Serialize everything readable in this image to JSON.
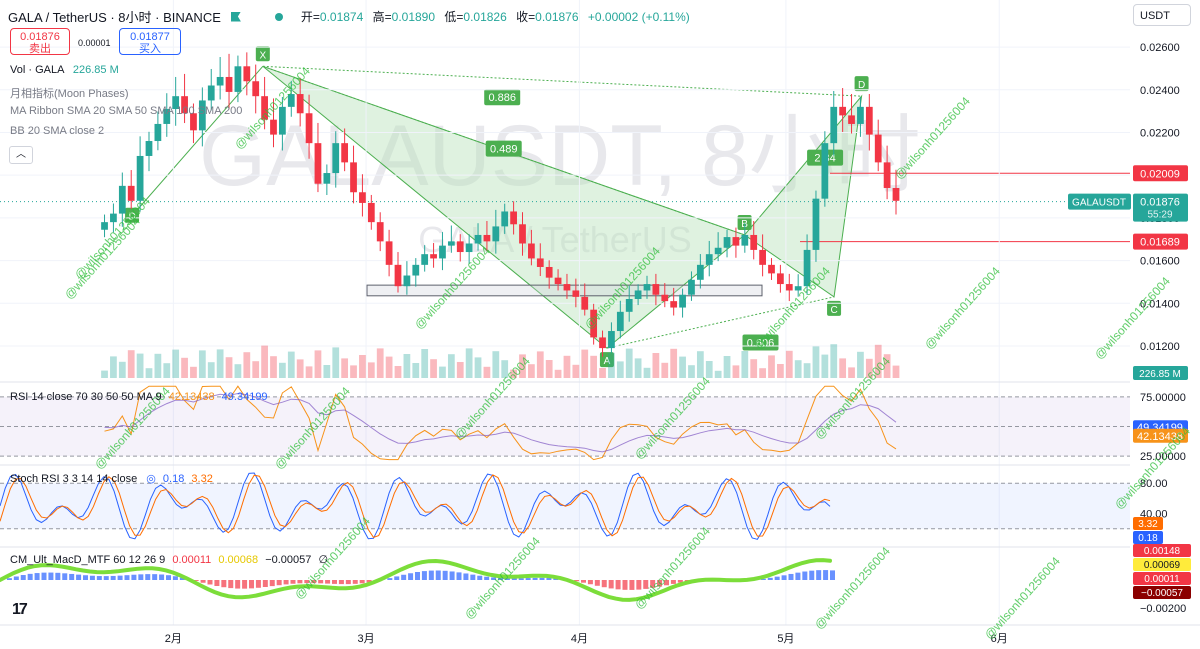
{
  "header": {
    "symbol": "GALA / TetherUS · 8小时 · BINANCE",
    "open_label": "开=",
    "open": "0.01874",
    "high_label": "高=",
    "high": "0.01890",
    "low_label": "低=",
    "low": "0.01826",
    "close_label": "收=",
    "close": "0.01876",
    "change": "+0.00002 (+0.11%)"
  },
  "trade": {
    "sell_price": "0.01876",
    "sell_label": "卖出",
    "spread": "0.00001",
    "buy_price": "0.01877",
    "buy_label": "买入"
  },
  "currency_select": "USDT",
  "indicators": {
    "vol_label": "Vol · GALA",
    "vol_value": "226.85 M",
    "moon": "月相指标(Moon Phases)",
    "ma_ribbon": "MA Ribbon SMA 20 SMA 50 SMA 100 SMA 200",
    "bb": "BB 20 SMA close 2",
    "rsi_label": "RSI 14 close 70 30 50 50 MA 9",
    "rsi_value": "42.13438",
    "rsi_ma_value": "49.34199",
    "stoch_label": "Stoch RSI 3 3 14 14 close",
    "stoch_k": "0.18",
    "stoch_d": "3.32",
    "macd_label": "CM_Ult_MacD_MTF 60 12 26 9",
    "macd_v1": "0.00011",
    "macd_v2": "0.00068",
    "macd_v3": "−0.00057",
    "macd_v4": "∅"
  },
  "watermarks": {
    "big": "GALAUSDT, 8小时",
    "small": "GALA / TetherUS",
    "handle": "@wilsonh01256004"
  },
  "colors": {
    "up": "#26a69a",
    "down": "#f23645",
    "pattern_fill": "#b9e3bb",
    "pattern_line": "#4caf50",
    "rsi_line": "#f7931a",
    "rsi_ma": "#7e57c2",
    "stoch_k": "#2962ff",
    "stoch_d": "#ff6d00",
    "hline": "#f23645"
  },
  "chart_data": {
    "type": "candlestick",
    "title": "GALA / TetherUS · 8小时 · BINANCE",
    "x_axis_ticks": [
      "2月",
      "3月",
      "4月",
      "5月",
      "6月"
    ],
    "price_axis_ticks": [
      "0.02600",
      "0.02400",
      "0.02200",
      "0.02000",
      "0.01800",
      "0.01600",
      "0.01400",
      "0.01200"
    ],
    "price_range": [
      0.0105,
      0.0268
    ],
    "current_price_label": {
      "text": "GALAUSDT",
      "price": "0.01876",
      "countdown": "55:29",
      "value": 0.01876
    },
    "horizontal_lines": [
      {
        "price": "0.02009",
        "value": 0.02009
      },
      {
        "price": "0.01689",
        "value": 0.01689
      }
    ],
    "support_zone": [
      0.01435,
      0.01485
    ],
    "volume_label": "226.85 M",
    "harmonic_points": [
      {
        "label": "X",
        "date": "2021-02-14",
        "price": 0.0251
      },
      {
        "label": "A",
        "date": "2021-04-05",
        "price": 0.0119
      },
      {
        "label": "B",
        "date": "2021-04-25",
        "price": 0.0172
      },
      {
        "label": "C",
        "date": "2021-05-08",
        "price": 0.0143
      },
      {
        "label": "D",
        "date": "2021-05-12",
        "price": 0.0237
      },
      {
        "label": "D",
        "date": "2021-01-26",
        "price": 0.0181
      }
    ],
    "harmonic_ratios": [
      "0.886",
      "0.489",
      "2.34",
      "0.606"
    ],
    "candle_closes": [
      0.0178,
      0.0182,
      0.0195,
      0.0188,
      0.0209,
      0.0216,
      0.0224,
      0.0231,
      0.0237,
      0.0229,
      0.0221,
      0.0235,
      0.0242,
      0.0246,
      0.0239,
      0.0251,
      0.0244,
      0.0237,
      0.0226,
      0.0219,
      0.0232,
      0.0238,
      0.0229,
      0.0215,
      0.0196,
      0.0201,
      0.0215,
      0.0206,
      0.0192,
      0.0187,
      0.0178,
      0.0169,
      0.0158,
      0.0148,
      0.0153,
      0.0158,
      0.0163,
      0.0161,
      0.0167,
      0.0169,
      0.0164,
      0.0168,
      0.0172,
      0.0169,
      0.0176,
      0.0183,
      0.0177,
      0.0168,
      0.0161,
      0.0157,
      0.0152,
      0.0149,
      0.0146,
      0.0143,
      0.0137,
      0.0124,
      0.0119,
      0.0127,
      0.0136,
      0.0142,
      0.0146,
      0.0149,
      0.0144,
      0.0141,
      0.0138,
      0.0144,
      0.0151,
      0.0158,
      0.0163,
      0.0166,
      0.0171,
      0.0167,
      0.0172,
      0.0165,
      0.0158,
      0.0154,
      0.0149,
      0.0146,
      0.0148,
      0.0165,
      0.0189,
      0.0215,
      0.0232,
      0.0228,
      0.0224,
      0.0232,
      0.0219,
      0.0206,
      0.0194,
      0.0188
    ],
    "rsi": {
      "label": "RSI 14 close 70 30 50 50 MA 9",
      "value": 42.13438,
      "ma": 49.34199,
      "ticks": [
        "75.00000",
        "25.00000"
      ],
      "range": [
        20,
        85
      ]
    },
    "stoch_rsi": {
      "label": "Stoch RSI 3 3 14 14 close",
      "k": 0.18,
      "d": 3.32,
      "ticks": [
        "80.00",
        "40.00"
      ],
      "range": [
        0,
        100
      ]
    },
    "macd": {
      "label": "CM_Ult_MacD_MTF 60 12 26 9",
      "values": [
        "0.00148",
        "0.00069",
        "0.00011",
        "−0.00057"
      ],
      "tick": "−0.00200"
    }
  }
}
